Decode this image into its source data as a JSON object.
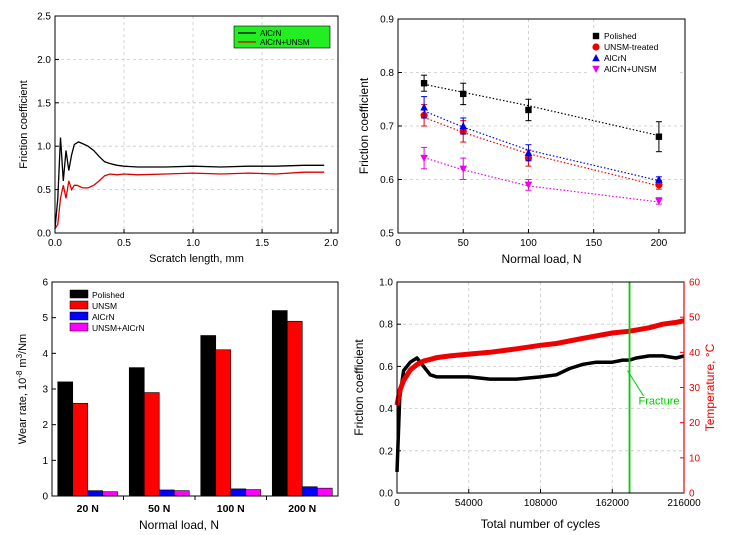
{
  "chart_data": [
    {
      "id": "a",
      "type": "line",
      "xlabel": "Scratch length, mm",
      "ylabel": "Friction coefficient",
      "xlim": [
        0,
        2.05
      ],
      "ylim": [
        0,
        2.5
      ],
      "xticks": [
        0,
        0.5,
        1.0,
        1.5,
        2.0
      ],
      "xtick_labels": [
        "0.0",
        "0.5",
        "1.0",
        "1.5",
        "2.0"
      ],
      "yticks": [
        0,
        0.5,
        1.0,
        1.5,
        2.0,
        2.5
      ],
      "ytick_labels": [
        "0.0",
        "0.5",
        "1.0",
        "1.5",
        "2.0",
        "2.5"
      ],
      "grid": true,
      "legend": {
        "position": "top-right",
        "background": "#22ee22"
      },
      "series": [
        {
          "name": "AlCrN",
          "color": "#000000",
          "x": [
            0.0,
            0.02,
            0.04,
            0.06,
            0.08,
            0.1,
            0.12,
            0.14,
            0.17,
            0.2,
            0.24,
            0.28,
            0.32,
            0.36,
            0.4,
            0.45,
            0.5,
            0.6,
            0.8,
            1.0,
            1.2,
            1.4,
            1.6,
            1.8,
            1.95
          ],
          "y": [
            0.05,
            0.4,
            1.1,
            0.6,
            0.95,
            0.72,
            0.9,
            1.02,
            1.05,
            1.03,
            1.0,
            0.95,
            0.88,
            0.82,
            0.8,
            0.78,
            0.77,
            0.76,
            0.76,
            0.77,
            0.76,
            0.77,
            0.77,
            0.78,
            0.78
          ]
        },
        {
          "name": "AlCrN+UNSM",
          "color": "#dd0000",
          "x": [
            0.0,
            0.02,
            0.04,
            0.06,
            0.08,
            0.1,
            0.12,
            0.14,
            0.16,
            0.2,
            0.24,
            0.28,
            0.32,
            0.36,
            0.4,
            0.45,
            0.5,
            0.6,
            0.8,
            1.0,
            1.2,
            1.4,
            1.6,
            1.8,
            1.95
          ],
          "y": [
            0.05,
            0.1,
            0.4,
            0.55,
            0.4,
            0.6,
            0.5,
            0.55,
            0.55,
            0.52,
            0.52,
            0.55,
            0.6,
            0.66,
            0.68,
            0.67,
            0.68,
            0.67,
            0.68,
            0.69,
            0.68,
            0.69,
            0.68,
            0.7,
            0.7
          ]
        }
      ]
    },
    {
      "id": "b",
      "type": "scatter",
      "xlabel": "Normal load, N",
      "ylabel": "Friction coefficient",
      "xlim": [
        0,
        220
      ],
      "ylim": [
        0.5,
        0.9
      ],
      "xticks": [
        0,
        50,
        100,
        150,
        200
      ],
      "xtick_labels": [
        "0",
        "50",
        "100",
        "150",
        "200"
      ],
      "yticks": [
        0.5,
        0.6,
        0.7,
        0.8,
        0.9
      ],
      "ytick_labels": [
        "0.5",
        "0.6",
        "0.7",
        "0.8",
        "0.9"
      ],
      "grid": true,
      "legend": {
        "position": "top-right"
      },
      "x": [
        20,
        50,
        100,
        200
      ],
      "series": [
        {
          "name": "Polished",
          "color": "#000000",
          "marker": "square",
          "values": [
            0.78,
            0.76,
            0.73,
            0.68
          ],
          "err": [
            0.015,
            0.02,
            0.02,
            0.028
          ],
          "fit": [
            0.778,
            0.763,
            0.738,
            0.682
          ]
        },
        {
          "name": "UNSM-treated",
          "color": "#ee0000",
          "marker": "circle",
          "values": [
            0.72,
            0.69,
            0.64,
            0.59
          ],
          "err": [
            0.02,
            0.02,
            0.015,
            0.008
          ],
          "fit": [
            0.716,
            0.688,
            0.648,
            0.588
          ]
        },
        {
          "name": "AlCrN",
          "color": "#0000ee",
          "marker": "triangle-up",
          "values": [
            0.735,
            0.7,
            0.65,
            0.6
          ],
          "err": [
            0.02,
            0.015,
            0.015,
            0.005
          ],
          "fit": [
            0.728,
            0.698,
            0.655,
            0.598
          ]
        },
        {
          "name": "AlCrN+UNSM",
          "color": "#ee00ee",
          "marker": "triangle-down",
          "values": [
            0.64,
            0.62,
            0.59,
            0.56
          ],
          "err": [
            0.02,
            0.02,
            0.01,
            0.006
          ],
          "fit": [
            0.641,
            0.618,
            0.588,
            0.558
          ]
        }
      ]
    },
    {
      "id": "c",
      "type": "bar",
      "xlabel": "Normal load, N",
      "ylabel_prefix": "Wear rate, 10",
      "ylabel_exp1": "-8",
      "ylabel_mid": " m",
      "ylabel_exp2": "3",
      "ylabel_suffix": "/Nm",
      "ylim": [
        0,
        6
      ],
      "yticks": [
        0,
        1,
        2,
        3,
        4,
        5,
        6
      ],
      "ytick_labels": [
        "0",
        "1",
        "2",
        "3",
        "4",
        "5",
        "6"
      ],
      "legend": {
        "position": "top-left"
      },
      "categories": [
        "20 N",
        "50 N",
        "100 N",
        "200 N"
      ],
      "series": [
        {
          "name": "Polished",
          "color": "#000000",
          "values": [
            3.2,
            3.6,
            4.5,
            5.2
          ]
        },
        {
          "name": "UNSM",
          "color": "#ff0000",
          "values": [
            2.6,
            2.9,
            4.1,
            4.9
          ]
        },
        {
          "name": "AlCrN",
          "color": "#0000ff",
          "values": [
            0.15,
            0.17,
            0.2,
            0.26
          ]
        },
        {
          "name": "UNSM+AlCrN",
          "color": "#ff00ff",
          "values": [
            0.12,
            0.15,
            0.18,
            0.22
          ]
        }
      ]
    },
    {
      "id": "d",
      "type": "line",
      "xlabel": "Total number of cycles",
      "ylabel": "Friction coefficient",
      "ylabel_right": "Temperature, °C",
      "xlim": [
        0,
        216000
      ],
      "ylim": [
        0,
        1.0
      ],
      "ylim_right": [
        0,
        60
      ],
      "xticks": [
        0,
        54000,
        108000,
        162000,
        216000
      ],
      "xtick_labels": [
        "0",
        "54000",
        "108000",
        "162000",
        "216000"
      ],
      "yticks": [
        0,
        0.2,
        0.4,
        0.6,
        0.8,
        1.0
      ],
      "ytick_labels": [
        "0.0",
        "0.2",
        "0.4",
        "0.6",
        "0.8",
        "1.0"
      ],
      "yticks_right": [
        0,
        10,
        20,
        30,
        40,
        50,
        60
      ],
      "ytick_labels_right": [
        "0",
        "10",
        "20",
        "30",
        "40",
        "50",
        "60"
      ],
      "grid": true,
      "annotation": {
        "text": "Fracture",
        "x": 175000,
        "color": "#00cc00"
      },
      "series": [
        {
          "name": "Friction coefficient",
          "color": "#000000",
          "axis": "left",
          "x": [
            0,
            2000,
            5000,
            10000,
            15000,
            20000,
            25000,
            30000,
            40000,
            54000,
            70000,
            90000,
            108000,
            120000,
            130000,
            140000,
            150000,
            162000,
            170000,
            175000,
            180000,
            190000,
            200000,
            210000,
            216000
          ],
          "y": [
            0.1,
            0.45,
            0.58,
            0.62,
            0.64,
            0.6,
            0.56,
            0.55,
            0.55,
            0.55,
            0.54,
            0.54,
            0.55,
            0.56,
            0.59,
            0.61,
            0.62,
            0.62,
            0.63,
            0.63,
            0.64,
            0.65,
            0.65,
            0.64,
            0.65
          ]
        },
        {
          "name": "Temperature",
          "color": "#ee0000",
          "axis": "right",
          "x": [
            0,
            2000,
            5000,
            10000,
            15000,
            20000,
            25000,
            30000,
            40000,
            54000,
            70000,
            90000,
            108000,
            120000,
            140000,
            162000,
            175000,
            190000,
            200000,
            210000,
            216000
          ],
          "y": [
            25,
            29,
            32,
            35,
            36.5,
            37.5,
            38,
            38.5,
            39,
            39.5,
            40,
            41,
            42,
            42.5,
            44,
            45.5,
            46,
            47,
            48,
            48.5,
            49
          ]
        }
      ]
    }
  ]
}
